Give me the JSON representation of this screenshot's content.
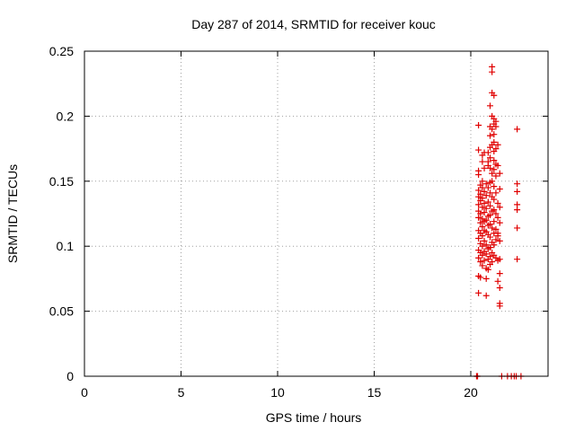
{
  "chart_data": {
    "type": "scatter",
    "title": "Day 287 of 2014, SRMTID for receiver kouc",
    "xlabel": "GPS time / hours",
    "ylabel": "SRMTID / TECUs",
    "xlim": [
      0,
      24
    ],
    "ylim": [
      0,
      0.25
    ],
    "xticks": [
      0,
      5,
      10,
      15,
      20
    ],
    "xtick_labels": [
      "0",
      "5",
      "10",
      "15",
      "20"
    ],
    "yticks": [
      0,
      0.05,
      0.1,
      0.15,
      0.2,
      0.25
    ],
    "ytick_labels": [
      "0",
      "0.05",
      "0.1",
      "0.15",
      "0.2",
      "0.25"
    ],
    "grid": true,
    "marker": "+",
    "color": "#e00000",
    "series": [
      {
        "name": "SRMTID",
        "points": [
          [
            20.4,
            0.193
          ],
          [
            20.4,
            0.174
          ],
          [
            20.4,
            0.158
          ],
          [
            20.4,
            0.155
          ],
          [
            20.4,
            0.143
          ],
          [
            20.4,
            0.138
          ],
          [
            20.4,
            0.132
          ],
          [
            20.4,
            0.127
          ],
          [
            20.4,
            0.122
          ],
          [
            20.4,
            0.112
          ],
          [
            20.4,
            0.106
          ],
          [
            20.4,
            0.097
          ],
          [
            20.4,
            0.091
          ],
          [
            20.4,
            0.077
          ],
          [
            20.4,
            0.064
          ],
          [
            20.5,
            0.147
          ],
          [
            20.5,
            0.14
          ],
          [
            20.5,
            0.135
          ],
          [
            20.5,
            0.125
          ],
          [
            20.5,
            0.118
          ],
          [
            20.5,
            0.11
          ],
          [
            20.5,
            0.102
          ],
          [
            20.5,
            0.095
          ],
          [
            20.5,
            0.088
          ],
          [
            20.5,
            0.076
          ],
          [
            20.6,
            0.17
          ],
          [
            20.6,
            0.165
          ],
          [
            20.6,
            0.15
          ],
          [
            20.6,
            0.145
          ],
          [
            20.6,
            0.137
          ],
          [
            20.6,
            0.13
          ],
          [
            20.6,
            0.121
          ],
          [
            20.6,
            0.115
          ],
          [
            20.6,
            0.108
          ],
          [
            20.6,
            0.1
          ],
          [
            20.6,
            0.093
          ],
          [
            20.6,
            0.085
          ],
          [
            20.7,
            0.172
          ],
          [
            20.7,
            0.16
          ],
          [
            20.7,
            0.142
          ],
          [
            20.7,
            0.133
          ],
          [
            20.7,
            0.126
          ],
          [
            20.7,
            0.119
          ],
          [
            20.7,
            0.112
          ],
          [
            20.7,
            0.104
          ],
          [
            20.7,
            0.096
          ],
          [
            20.7,
            0.089
          ],
          [
            20.8,
            0.148
          ],
          [
            20.8,
            0.139
          ],
          [
            20.8,
            0.129
          ],
          [
            20.8,
            0.12
          ],
          [
            20.8,
            0.111
          ],
          [
            20.8,
            0.101
          ],
          [
            20.8,
            0.094
          ],
          [
            20.8,
            0.083
          ],
          [
            20.8,
            0.075
          ],
          [
            20.8,
            0.062
          ],
          [
            20.9,
            0.172
          ],
          [
            20.9,
            0.165
          ],
          [
            20.9,
            0.162
          ],
          [
            20.9,
            0.145
          ],
          [
            20.9,
            0.134
          ],
          [
            20.9,
            0.123
          ],
          [
            20.9,
            0.116
          ],
          [
            20.9,
            0.109
          ],
          [
            20.9,
            0.098
          ],
          [
            20.9,
            0.09
          ],
          [
            20.9,
            0.082
          ],
          [
            21.0,
            0.208
          ],
          [
            21.0,
            0.192
          ],
          [
            21.0,
            0.185
          ],
          [
            21.0,
            0.176
          ],
          [
            21.0,
            0.168
          ],
          [
            21.0,
            0.16
          ],
          [
            21.0,
            0.149
          ],
          [
            21.0,
            0.141
          ],
          [
            21.0,
            0.131
          ],
          [
            21.0,
            0.124
          ],
          [
            21.0,
            0.117
          ],
          [
            21.0,
            0.107
          ],
          [
            21.0,
            0.099
          ],
          [
            21.0,
            0.092
          ],
          [
            21.0,
            0.086
          ],
          [
            21.1,
            0.238
          ],
          [
            21.1,
            0.234
          ],
          [
            21.1,
            0.218
          ],
          [
            21.1,
            0.2
          ],
          [
            21.1,
            0.19
          ],
          [
            21.1,
            0.178
          ],
          [
            21.1,
            0.156
          ],
          [
            21.1,
            0.15
          ],
          [
            21.1,
            0.138
          ],
          [
            21.1,
            0.127
          ],
          [
            21.1,
            0.114
          ],
          [
            21.1,
            0.103
          ],
          [
            21.1,
            0.095
          ],
          [
            21.1,
            0.088
          ],
          [
            21.2,
            0.216
          ],
          [
            21.2,
            0.198
          ],
          [
            21.2,
            0.194
          ],
          [
            21.2,
            0.186
          ],
          [
            21.2,
            0.18
          ],
          [
            21.2,
            0.173
          ],
          [
            21.2,
            0.166
          ],
          [
            21.2,
            0.159
          ],
          [
            21.2,
            0.146
          ],
          [
            21.2,
            0.136
          ],
          [
            21.2,
            0.128
          ],
          [
            21.2,
            0.119
          ],
          [
            21.2,
            0.11
          ],
          [
            21.2,
            0.101
          ],
          [
            21.2,
            0.093
          ],
          [
            21.3,
            0.196
          ],
          [
            21.3,
            0.192
          ],
          [
            21.3,
            0.175
          ],
          [
            21.3,
            0.163
          ],
          [
            21.3,
            0.154
          ],
          [
            21.3,
            0.141
          ],
          [
            21.3,
            0.125
          ],
          [
            21.3,
            0.113
          ],
          [
            21.3,
            0.105
          ],
          [
            21.3,
            0.091
          ],
          [
            21.4,
            0.178
          ],
          [
            21.4,
            0.162
          ],
          [
            21.4,
            0.133
          ],
          [
            21.4,
            0.122
          ],
          [
            21.4,
            0.11
          ],
          [
            21.4,
            0.108
          ],
          [
            21.4,
            0.089
          ],
          [
            21.4,
            0.073
          ],
          [
            21.5,
            0.156
          ],
          [
            21.5,
            0.144
          ],
          [
            21.5,
            0.13
          ],
          [
            21.5,
            0.118
          ],
          [
            21.5,
            0.104
          ],
          [
            21.5,
            0.09
          ],
          [
            21.5,
            0.079
          ],
          [
            21.5,
            0.068
          ],
          [
            21.5,
            0.056
          ],
          [
            21.5,
            0.054
          ],
          [
            22.4,
            0.19
          ],
          [
            22.4,
            0.148
          ],
          [
            22.4,
            0.142
          ],
          [
            22.4,
            0.132
          ],
          [
            22.4,
            0.128
          ],
          [
            22.4,
            0.114
          ],
          [
            22.4,
            0.09
          ],
          [
            20.3,
            0.0
          ],
          [
            20.35,
            0.0
          ],
          [
            21.6,
            0.0
          ],
          [
            21.9,
            0.0
          ],
          [
            22.1,
            0.0
          ],
          [
            22.25,
            0.0
          ],
          [
            22.35,
            0.0
          ],
          [
            22.6,
            0.0
          ]
        ]
      }
    ]
  }
}
